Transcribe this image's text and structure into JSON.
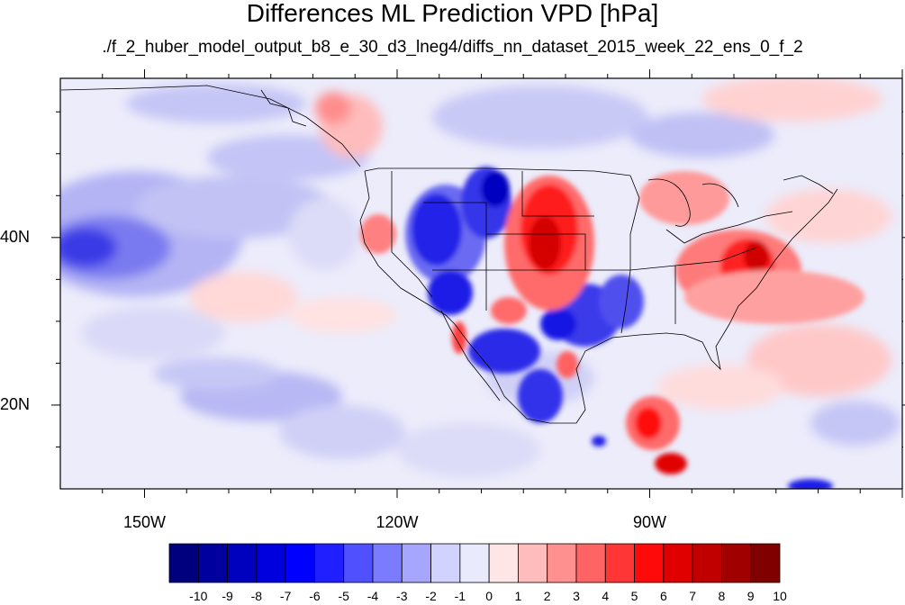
{
  "title": "Differences ML Prediction VPD [hPa]",
  "subtitle": "./f_2_huber_model_output_b8_e_30_d3_lneg4/diffs_nn_dataset_2015_week_22_ens_0_f_2",
  "map": {
    "lon_range": [
      -160,
      -60
    ],
    "lat_range": [
      10,
      59
    ],
    "lon_ticks": [
      {
        "value": -150,
        "label": "150W"
      },
      {
        "value": -120,
        "label": "120W"
      },
      {
        "value": -90,
        "label": "90W"
      }
    ],
    "lat_ticks": [
      {
        "value": 40,
        "label": "40N"
      },
      {
        "value": 20,
        "label": "20N"
      }
    ]
  },
  "colorbar": {
    "levels": [
      "-10",
      "-9",
      "-8",
      "-7",
      "-6",
      "-5",
      "-4",
      "-3",
      "-2",
      "-1",
      "0",
      "1",
      "2",
      "3",
      "4",
      "5",
      "6",
      "7",
      "8",
      "9",
      "10"
    ],
    "colors": [
      "#00007f",
      "#00009f",
      "#0000bf",
      "#0000df",
      "#0000ff",
      "#1f1fff",
      "#5050ff",
      "#7b7bff",
      "#a6a6ff",
      "#d2d2ff",
      "#eaeafd",
      "#ffe6e6",
      "#ffbcbc",
      "#ff9090",
      "#ff6464",
      "#ff3636",
      "#ff0a0a",
      "#e00000",
      "#c00000",
      "#a00000",
      "#800000"
    ]
  }
}
